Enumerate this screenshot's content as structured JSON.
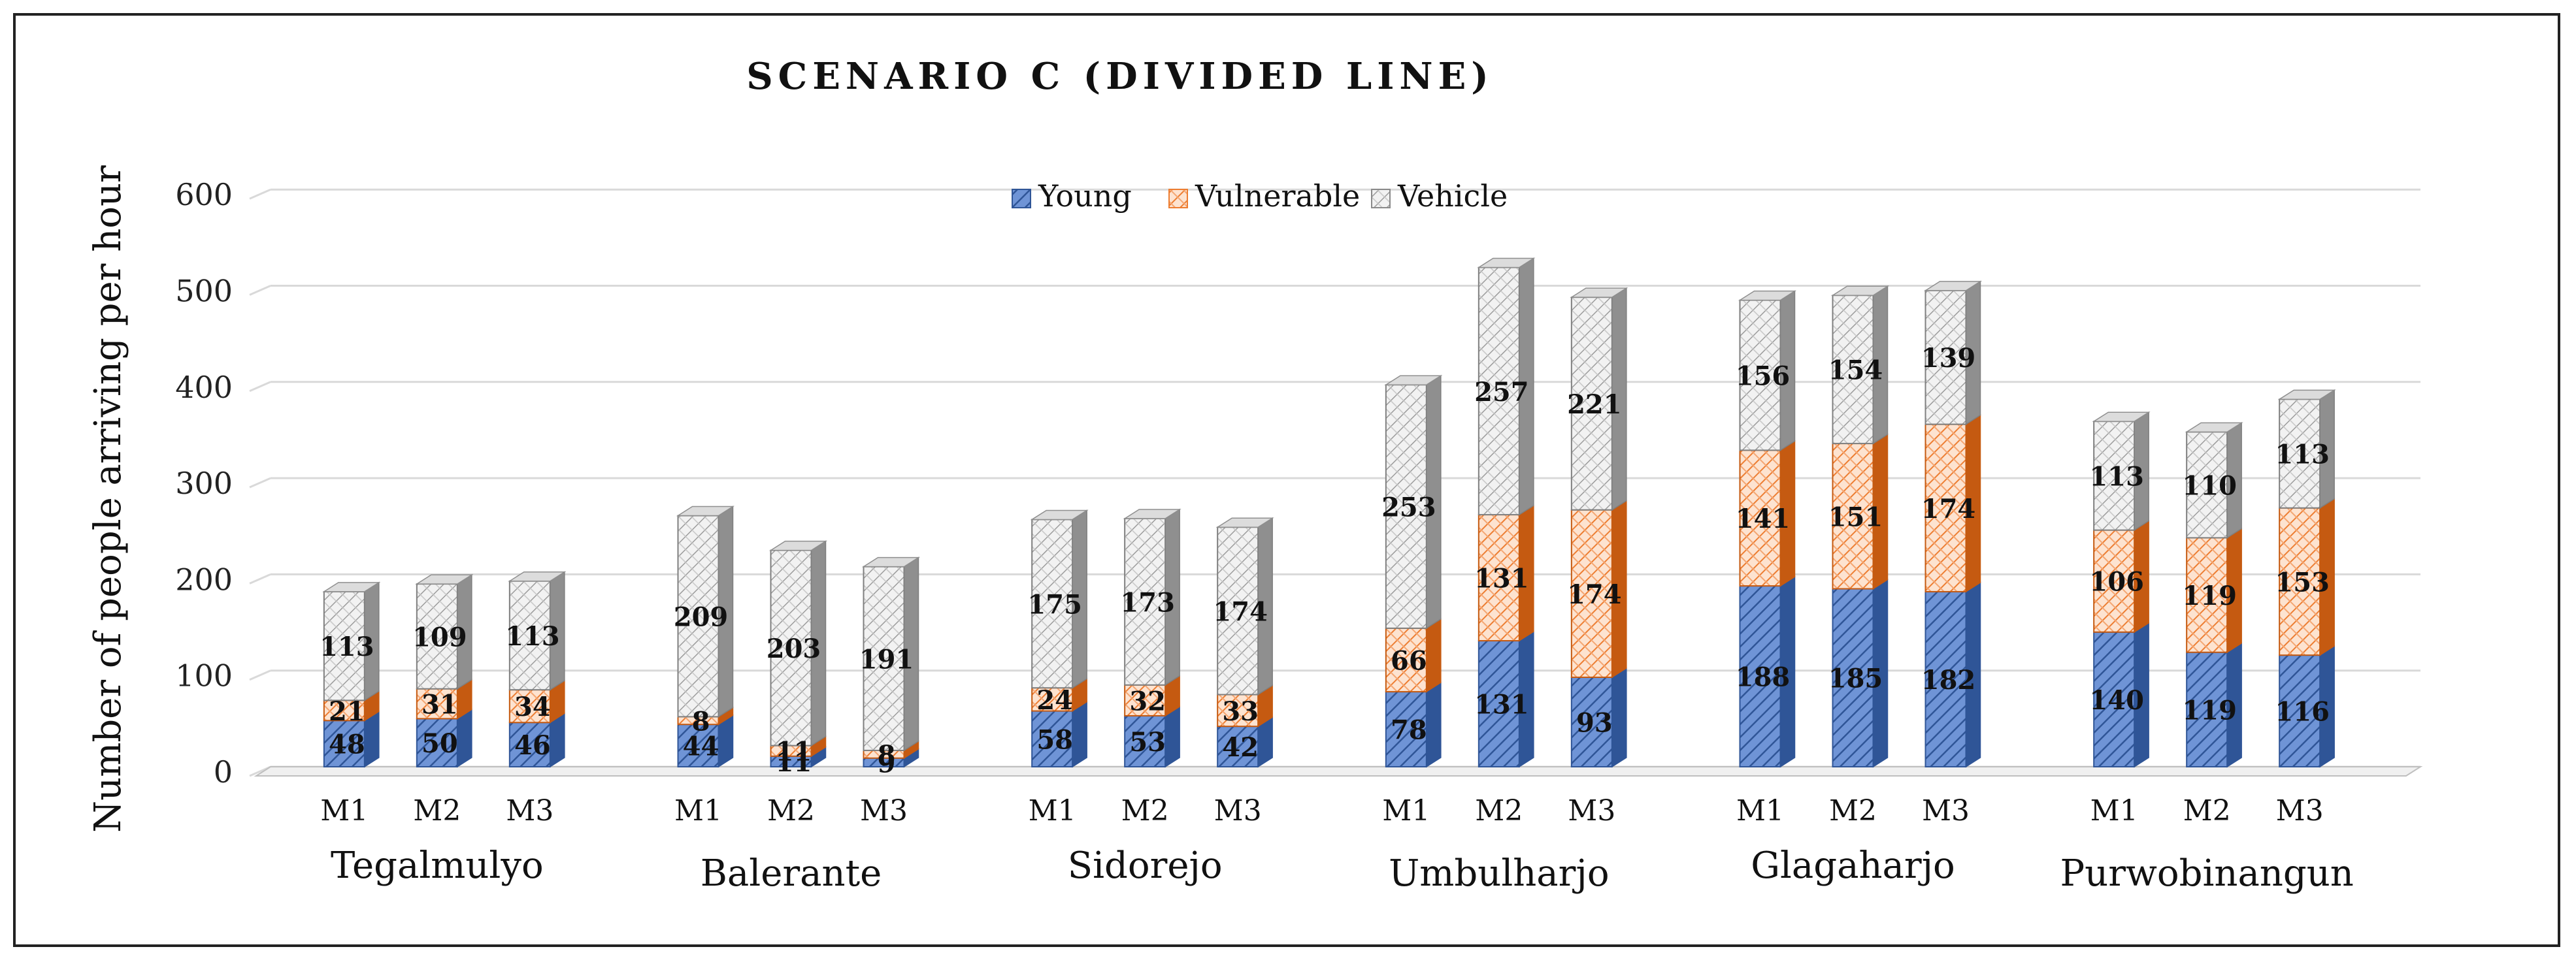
{
  "chart_data": {
    "type": "bar",
    "stacked": true,
    "title": "SCENARIO C (DIVIDED LINE)",
    "ylabel": "Number of people arriving per hour",
    "xlabel": "",
    "ylim": [
      0,
      600
    ],
    "yticks": [
      0,
      100,
      200,
      300,
      400,
      500,
      600
    ],
    "grid": true,
    "legend_position": "top-center",
    "groups": [
      "Tegalmulyo",
      "Balerante",
      "Sidorejo",
      "Umbulharjo",
      "Glagaharjo",
      "Purwobinangun"
    ],
    "methods": [
      "M1",
      "M2",
      "M3"
    ],
    "series": [
      {
        "name": "Young",
        "color": "#4472C4",
        "values": [
          [
            48,
            50,
            46
          ],
          [
            44,
            11,
            9
          ],
          [
            58,
            53,
            42
          ],
          [
            78,
            131,
            93
          ],
          [
            188,
            185,
            182
          ],
          [
            140,
            119,
            116
          ]
        ]
      },
      {
        "name": "Vulnerable",
        "color": "#ED7D31",
        "values": [
          [
            21,
            31,
            34
          ],
          [
            8,
            11,
            8
          ],
          [
            24,
            32,
            33
          ],
          [
            66,
            131,
            174
          ],
          [
            141,
            151,
            174
          ],
          [
            106,
            119,
            153
          ]
        ]
      },
      {
        "name": "Vehicle",
        "color": "#A5A5A5",
        "values": [
          [
            113,
            109,
            113
          ],
          [
            209,
            203,
            191
          ],
          [
            175,
            173,
            174
          ],
          [
            253,
            257,
            221
          ],
          [
            156,
            154,
            139
          ],
          [
            113,
            110,
            113
          ]
        ]
      }
    ]
  }
}
